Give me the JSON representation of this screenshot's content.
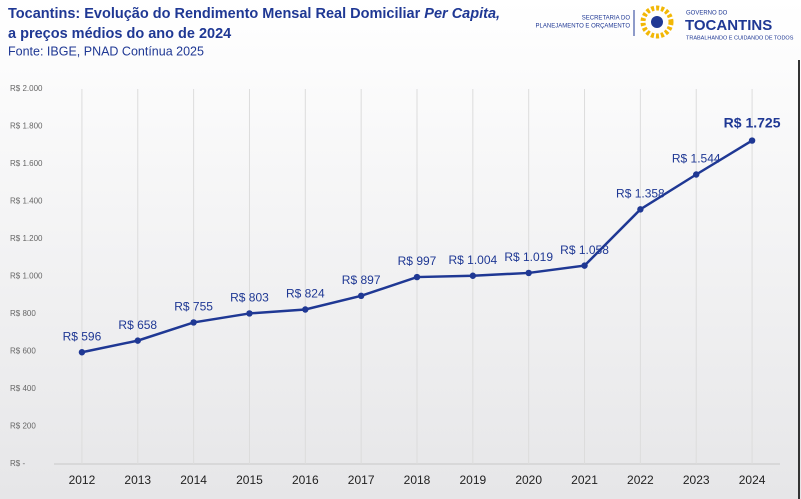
{
  "chart_data": {
    "type": "line",
    "title_parts": [
      "Tocantins: Evolução do Rendimento Mensal Real Domiciliar ",
      "Per Capita,",
      "a preços médios do ano de 2024"
    ],
    "subtitle": "Fonte: IBGE, PNAD Contínua 2025",
    "logos": {
      "secretaria": [
        "SECRETARIA DO",
        "PLANEJAMENTO E ORÇAMENTO"
      ],
      "governo": "GOVERNO DO",
      "estado": "TOCANTINS",
      "slogan": "TRABALHANDO E CUIDANDO DE TODOS"
    },
    "categories": [
      "2012",
      "2013",
      "2014",
      "2015",
      "2016",
      "2017",
      "2018",
      "2019",
      "2020",
      "2021",
      "2022",
      "2023",
      "2024"
    ],
    "values": [
      596,
      658,
      755,
      803,
      824,
      897,
      997,
      1004,
      1019,
      1058,
      1358,
      1544,
      1725
    ],
    "value_labels": [
      "R$ 596",
      "R$ 658",
      "R$ 755",
      "R$ 803",
      "R$ 824",
      "R$ 897",
      "R$ 997",
      "R$ 1.004",
      "R$ 1.019",
      "R$ 1.058",
      "R$ 1.358",
      "R$ 1.544",
      "R$ 1.725"
    ],
    "color": "#1f3894",
    "ylim": [
      0,
      2000
    ],
    "yticks": [
      {
        "value": 0,
        "label": "R$ -"
      },
      {
        "value": 200,
        "label": "R$ 200"
      },
      {
        "value": 400,
        "label": "R$ 400"
      },
      {
        "value": 600,
        "label": "R$ 600"
      },
      {
        "value": 800,
        "label": "R$ 800"
      },
      {
        "value": 1000,
        "label": "R$ 1.000"
      },
      {
        "value": 1200,
        "label": "R$ 1.200"
      },
      {
        "value": 1400,
        "label": "R$ 1.400"
      },
      {
        "value": 1600,
        "label": "R$ 1.600"
      },
      {
        "value": 1800,
        "label": "R$ 1.800"
      },
      {
        "value": 2000,
        "label": "R$ 2.000"
      }
    ]
  }
}
